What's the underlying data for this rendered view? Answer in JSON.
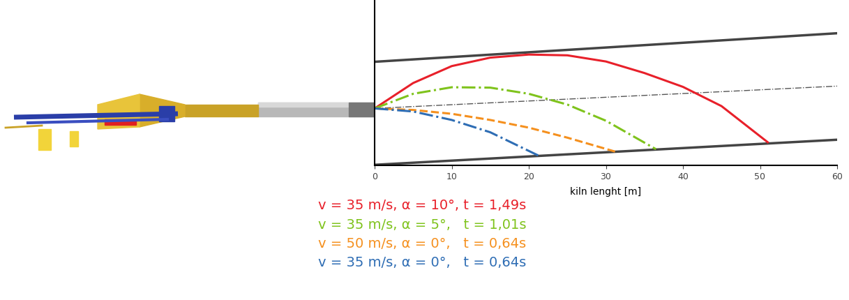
{
  "chart_data": {
    "type": "line",
    "x_label": "kiln lenght [m]",
    "xlim": [
      0,
      60
    ],
    "xticks": [
      0,
      10,
      20,
      30,
      40,
      50,
      60
    ],
    "ylim": [
      -7.4,
      14
    ],
    "tick_labels": "x",
    "grid": false,
    "walls": [
      {
        "color": "#444444",
        "line_style": "solid",
        "x": [
          0,
          60
        ],
        "values": [
          6.06,
          9.77
        ]
      },
      {
        "color": "#444444",
        "line_style": "solid",
        "x": [
          0,
          60
        ],
        "values": [
          -7.33,
          -4.07
        ]
      }
    ],
    "centerline": {
      "color": "#555555",
      "line_style": "dashdot",
      "x": [
        0,
        60
      ],
      "values": [
        0,
        2.9
      ]
    },
    "series": [
      {
        "name": "v = 35 m/s, α = 10°, t = 1,49s",
        "color": "#e8202a",
        "line_style": "solid",
        "x": [
          0,
          5,
          10,
          15,
          20,
          25,
          30,
          35,
          40,
          45,
          51
        ],
        "values": [
          0,
          3.3,
          5.5,
          6.6,
          7.0,
          6.9,
          6.1,
          4.6,
          2.8,
          0.3,
          -4.4
        ]
      },
      {
        "name": "v = 35 m/s, α = 5°,   t = 1,01s",
        "color": "#7fc31c",
        "line_style": "dashdot",
        "x": [
          0,
          5,
          10,
          15,
          20,
          25,
          30,
          36.5
        ],
        "values": [
          0,
          1.9,
          2.75,
          2.7,
          1.9,
          0.5,
          -1.6,
          -5.3
        ]
      },
      {
        "name": "v = 50 m/s, α = 0°,   t = 0,64s",
        "color": "#f5901e",
        "line_style": "dashed",
        "x": [
          0,
          5,
          10,
          15,
          20,
          25,
          31.5
        ],
        "values": [
          0,
          -0.2,
          -0.7,
          -1.5,
          -2.5,
          -3.8,
          -5.7
        ]
      },
      {
        "name": "v = 35 m/s, α = 0°,   t = 0,64s",
        "color": "#2e6db4",
        "line_style": "dashdot",
        "x": [
          0,
          5,
          10,
          15,
          21.5
        ],
        "values": [
          0,
          -0.4,
          -1.5,
          -3.1,
          -6.25
        ]
      }
    ]
  }
}
